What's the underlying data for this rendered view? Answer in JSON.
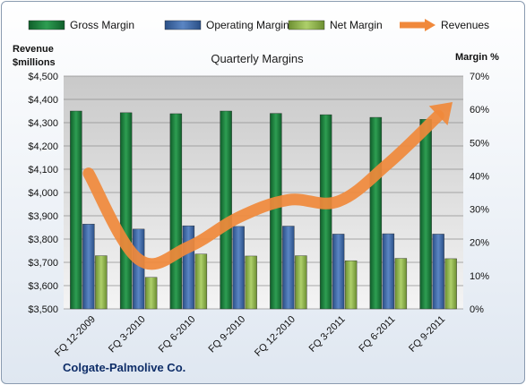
{
  "chart_data": {
    "type": "bar",
    "title": "Quarterly Margins",
    "left_axis": {
      "label_line1": "Revenue",
      "label_line2": "$millions",
      "ylim": [
        3500,
        4500
      ],
      "step": 100,
      "prefix": "$"
    },
    "right_axis": {
      "label": "Margin %",
      "ylim": [
        0,
        70
      ],
      "step": 10,
      "suffix": "%"
    },
    "categories": [
      "FQ 12-2009",
      "FQ 3-2010",
      "FQ 6-2010",
      "FQ 9-2010",
      "FQ 12-2010",
      "FQ 3-2011",
      "FQ 6-2011",
      "FQ 9-2011"
    ],
    "series": [
      {
        "name": "Gross Margin",
        "type": "bar",
        "axis": "right",
        "color": "#1e7a3c",
        "values": [
          59.5,
          59.0,
          58.7,
          59.5,
          58.8,
          58.4,
          57.6,
          57.0
        ]
      },
      {
        "name": "Operating Margin",
        "type": "bar",
        "axis": "right",
        "color": "#3b68a8",
        "values": [
          25.5,
          24.0,
          25.0,
          24.8,
          24.9,
          22.5,
          22.6,
          22.5
        ]
      },
      {
        "name": "Net Margin",
        "type": "bar",
        "axis": "right",
        "color": "#8db54a",
        "values": [
          16.0,
          9.5,
          16.5,
          15.9,
          16.0,
          14.5,
          15.2,
          15.1
        ]
      },
      {
        "name": "Revenues",
        "type": "line",
        "axis": "left",
        "color": "#f0893b",
        "values": [
          4082,
          3713,
          3766,
          3893,
          3968,
          3962,
          4125,
          4330
        ]
      }
    ],
    "legend_position": "top",
    "grid": true
  },
  "company": "Colgate-Palmolive Co."
}
